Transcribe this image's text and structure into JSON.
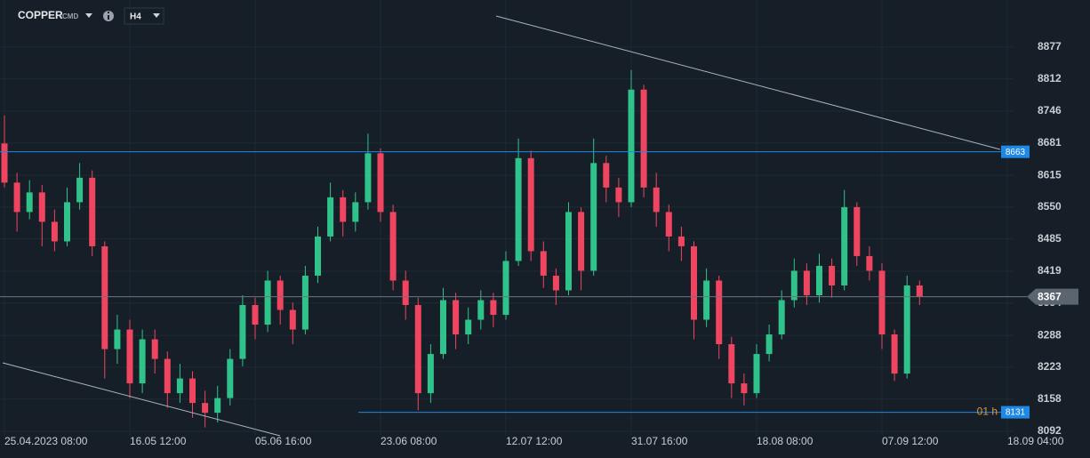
{
  "header": {
    "symbol": "COPPER",
    "market": "CMD",
    "timeframe": "H4"
  },
  "chart_data": {
    "type": "candlestick",
    "categories": [
      "25.04.2023 08:00",
      null,
      null,
      null,
      null,
      null,
      null,
      null,
      null,
      null,
      "16.05 12:00",
      null,
      null,
      null,
      null,
      null,
      null,
      null,
      null,
      null,
      "05.06 16:00",
      null,
      null,
      null,
      null,
      null,
      null,
      null,
      null,
      null,
      "23.06 08:00",
      null,
      null,
      null,
      null,
      null,
      null,
      null,
      null,
      null,
      "12.07 12:00",
      null,
      null,
      null,
      null,
      null,
      null,
      null,
      null,
      null,
      "31.07 16:00",
      null,
      null,
      null,
      null,
      null,
      null,
      null,
      null,
      null,
      "18.08 08:00",
      null,
      null,
      null,
      null,
      null,
      null,
      null,
      null,
      null,
      "07.09 12:00",
      null,
      null,
      null,
      null,
      null,
      null,
      null,
      null,
      null,
      "18.09 04:00"
    ],
    "open": [
      8680,
      8600,
      8540,
      8580,
      8520,
      8480,
      8560,
      8610,
      8470,
      8260,
      8300,
      8190,
      8280,
      8240,
      8170,
      8200,
      8150,
      8130,
      8160,
      8240,
      8350,
      8310,
      8400,
      8340,
      8300,
      8410,
      8490,
      8570,
      8520,
      8560,
      8660,
      8540,
      8400,
      8350,
      8170,
      8250,
      8360,
      8290,
      8320,
      8360,
      8330,
      8440,
      8650,
      8460,
      8410,
      8380,
      8540,
      8420,
      8640,
      8590,
      8560,
      8790,
      8590,
      8540,
      8490,
      8470,
      8320,
      8400,
      8270,
      8190,
      8170,
      8250,
      8290,
      8360,
      8420,
      8370,
      8430,
      8390,
      8550,
      8450,
      8420,
      8290,
      8210,
      8390,
      null,
      null,
      null,
      null,
      null,
      null,
      null
    ],
    "high": [
      8737,
      8620,
      8605,
      8595,
      8545,
      8590,
      8640,
      8625,
      8480,
      8330,
      8320,
      8300,
      8300,
      8255,
      8230,
      8215,
      8175,
      8185,
      8260,
      8370,
      8365,
      8420,
      8410,
      8355,
      8430,
      8510,
      8600,
      8585,
      8580,
      8700,
      8670,
      8555,
      8420,
      8365,
      8270,
      8385,
      8375,
      8345,
      8380,
      8375,
      8460,
      8690,
      8665,
      8480,
      8425,
      8560,
      8550,
      8690,
      8655,
      8610,
      8830,
      8800,
      8620,
      8555,
      8510,
      8480,
      8425,
      8410,
      8285,
      8210,
      8270,
      8310,
      8380,
      8445,
      8435,
      8455,
      8445,
      8585,
      8560,
      8470,
      8435,
      8300,
      8410,
      8400,
      null,
      null,
      null,
      null,
      null,
      null,
      null
    ],
    "low": [
      8590,
      8500,
      8525,
      8470,
      8460,
      8470,
      8545,
      8450,
      8200,
      8230,
      8160,
      8170,
      8210,
      8140,
      8150,
      8120,
      8100,
      8110,
      8145,
      8225,
      8280,
      8295,
      8310,
      8270,
      8290,
      8395,
      8480,
      8490,
      8500,
      8545,
      8520,
      8380,
      8320,
      8135,
      8150,
      8240,
      8260,
      8270,
      8300,
      8305,
      8320,
      8430,
      8440,
      8385,
      8350,
      8370,
      8380,
      8410,
      8560,
      8530,
      8550,
      8570,
      8510,
      8460,
      8440,
      8280,
      8305,
      8240,
      8160,
      8145,
      8160,
      8235,
      8280,
      8345,
      8350,
      8355,
      8365,
      8380,
      8430,
      8400,
      8260,
      8195,
      8200,
      8350,
      null,
      null,
      null,
      null,
      null,
      null,
      null
    ],
    "close": [
      8600,
      8540,
      8580,
      8520,
      8480,
      8560,
      8610,
      8470,
      8260,
      8300,
      8190,
      8280,
      8240,
      8170,
      8200,
      8150,
      8130,
      8160,
      8240,
      8350,
      8310,
      8400,
      8340,
      8300,
      8410,
      8490,
      8570,
      8520,
      8560,
      8660,
      8540,
      8400,
      8350,
      8170,
      8250,
      8360,
      8290,
      8320,
      8360,
      8330,
      8440,
      8650,
      8460,
      8410,
      8380,
      8540,
      8420,
      8640,
      8590,
      8560,
      8790,
      8590,
      8540,
      8490,
      8470,
      8320,
      8400,
      8270,
      8190,
      8170,
      8250,
      8290,
      8360,
      8420,
      8370,
      8430,
      8390,
      8550,
      8450,
      8420,
      8290,
      8210,
      8390,
      8367,
      null,
      null,
      null,
      null,
      null,
      null,
      null
    ],
    "up_color": "#2fc28a",
    "down_color": "#ef4560",
    "ylim": [
      8083,
      8973
    ],
    "yticks": [
      8092,
      8158,
      8223,
      8288,
      8354,
      8419,
      8485,
      8550,
      8615,
      8681,
      8746,
      8812,
      8877
    ],
    "grid": true,
    "levels": [
      {
        "value": 8663,
        "color": "#1e88e5"
      },
      {
        "value": 8131,
        "color": "#1e88e5",
        "timer": "01 h"
      }
    ],
    "last_price": 8367
  }
}
